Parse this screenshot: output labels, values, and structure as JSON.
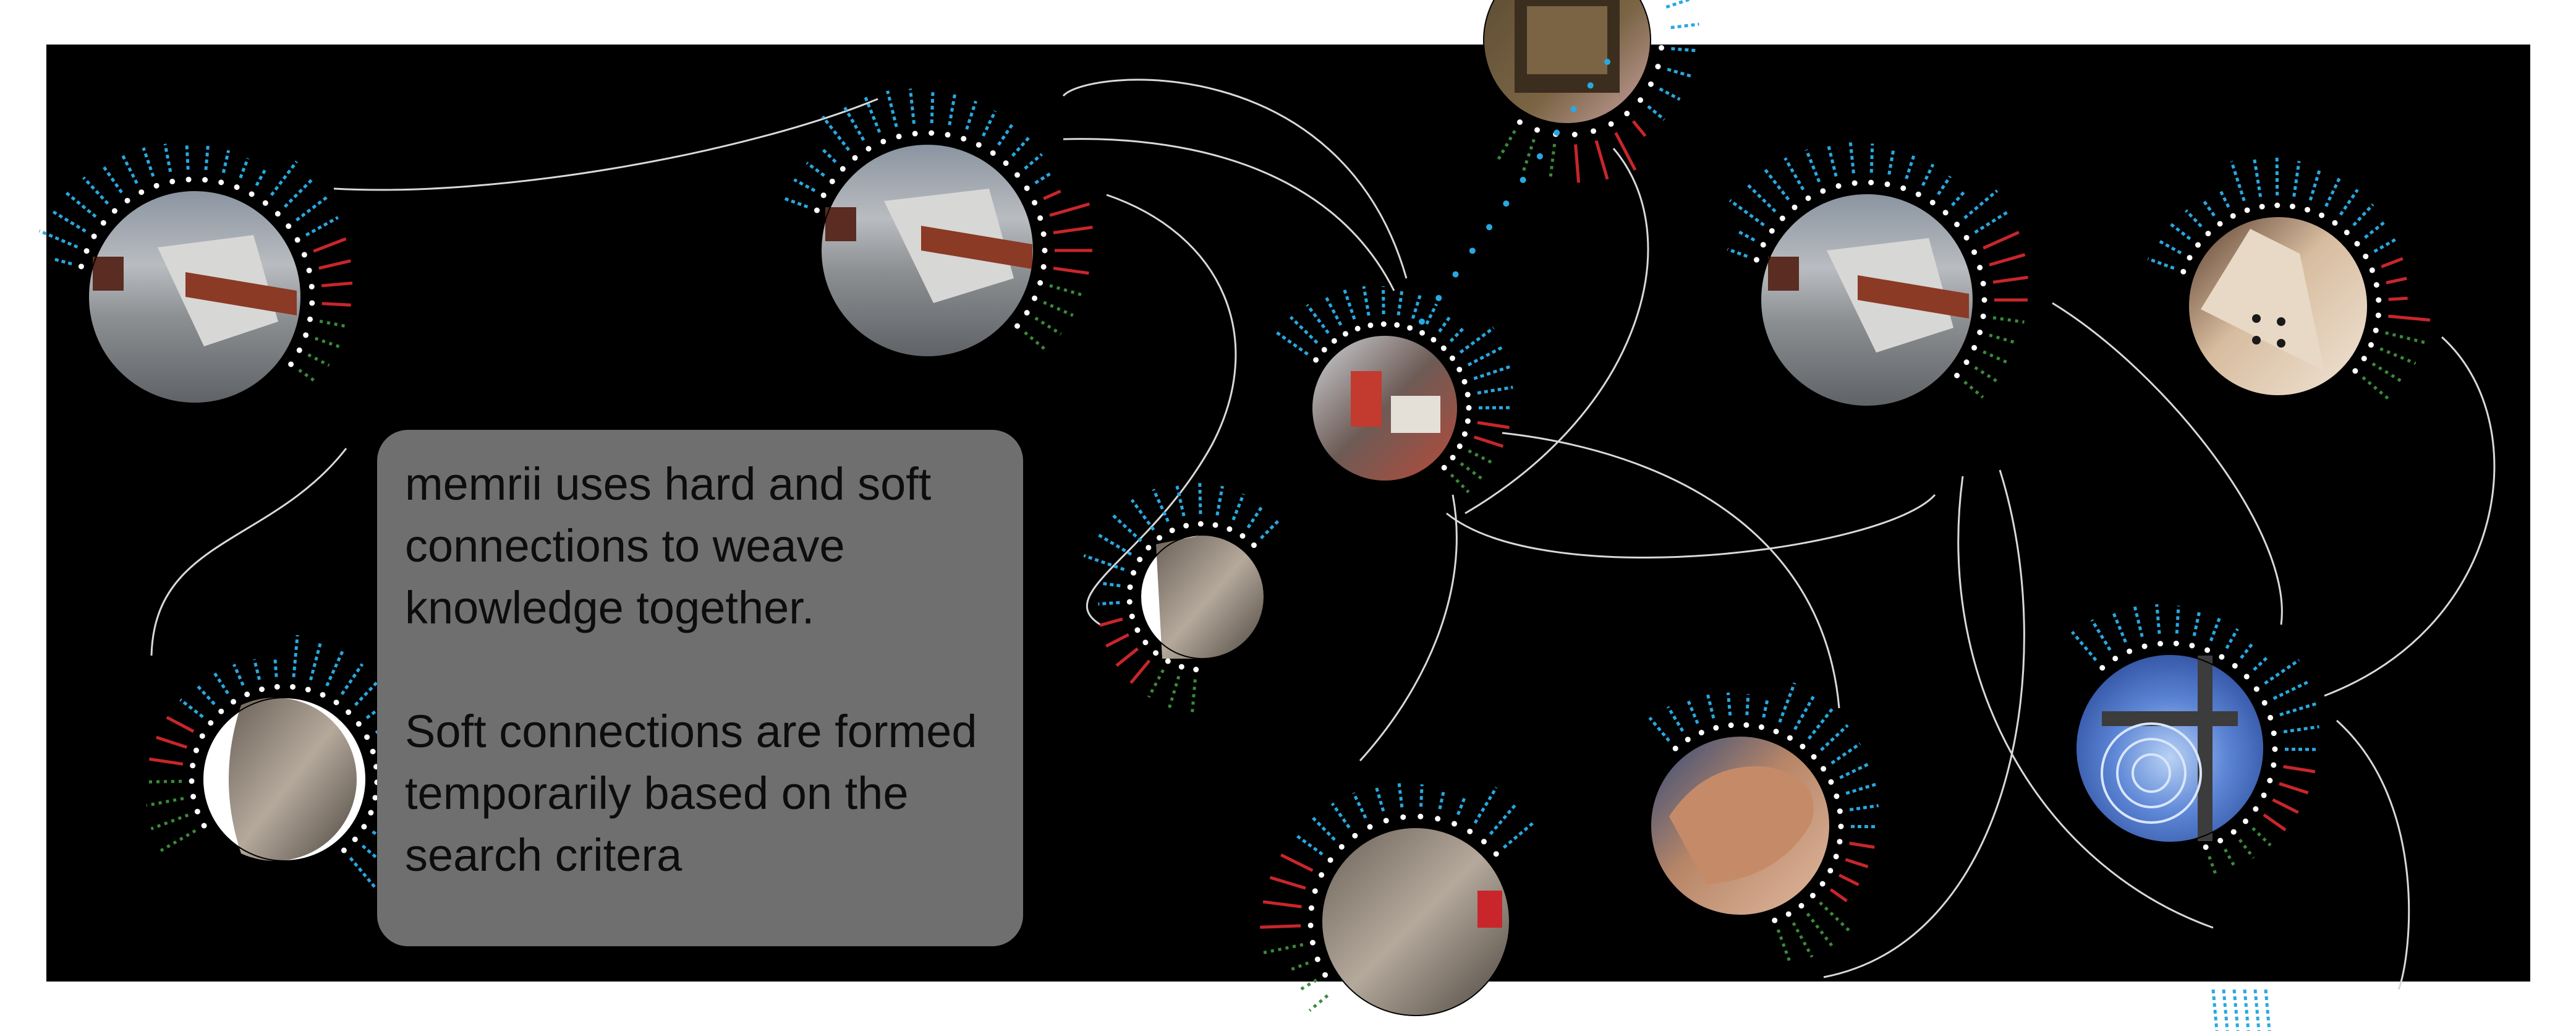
{
  "caption": {
    "paragraph_1": "memrii uses hard and soft connections to weave knowledge together.",
    "paragraph_2": "Soft connections are formed temporarily based on the search critera"
  },
  "colors": {
    "background": "#000000",
    "outer_background": "#ffffff",
    "caption_box": "#6f6f6f",
    "caption_text": "#0d0d0d",
    "connection_line": "#d9d9d9",
    "tick_blue": "#29a8e0",
    "tick_red": "#c8262b",
    "tick_green": "#3a8b3a",
    "dot_white": "#ffffff"
  },
  "nodes": [
    {
      "name": "node-bench-1",
      "photo": "concrete bench with wooden seat",
      "icon": "photo-thumbnail"
    },
    {
      "name": "node-bench-2",
      "photo": "concrete bench with wooden seat",
      "icon": "photo-thumbnail"
    },
    {
      "name": "node-nest",
      "photo": "nest of twigs on tray",
      "icon": "photo-thumbnail"
    },
    {
      "name": "node-workshop",
      "photo": "workshop interior",
      "icon": "photo-thumbnail"
    },
    {
      "name": "node-bench-3",
      "photo": "concrete bench with wooden seat",
      "icon": "photo-thumbnail"
    },
    {
      "name": "node-corner",
      "photo": "wooden corner piece with holes",
      "icon": "photo-thumbnail"
    },
    {
      "name": "node-sculpture-small",
      "photo": "metal sculpture",
      "icon": "photo-thumbnail"
    },
    {
      "name": "node-sculpture-left",
      "photo": "metal sculpture",
      "icon": "photo-thumbnail"
    },
    {
      "name": "node-sculpture-bottom",
      "photo": "metal sculpture",
      "icon": "photo-thumbnail"
    },
    {
      "name": "node-bear",
      "photo": "carved wooden bear",
      "icon": "photo-thumbnail"
    },
    {
      "name": "node-blue-glass",
      "photo": "blue glass window pattern",
      "icon": "photo-thumbnail"
    },
    {
      "name": "node-partial-bottom",
      "photo": "",
      "icon": "photo-thumbnail"
    }
  ]
}
